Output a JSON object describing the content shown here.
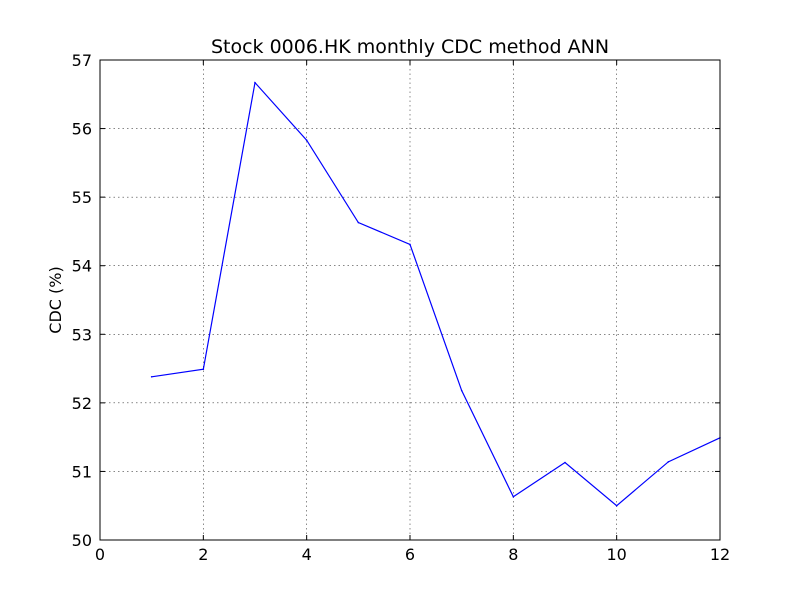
{
  "chart_data": {
    "type": "line",
    "title": "Stock 0006.HK monthly CDC method ANN",
    "xlabel": "",
    "ylabel": "CDC (%)",
    "xlim": [
      0,
      12
    ],
    "ylim": [
      50,
      57
    ],
    "x_ticks": [
      0,
      2,
      4,
      6,
      8,
      10,
      12
    ],
    "y_ticks": [
      50,
      51,
      52,
      53,
      54,
      55,
      56,
      57
    ],
    "grid": true,
    "legend": "none",
    "series": [
      {
        "color": "#0000ff",
        "x": [
          1,
          2,
          3,
          4,
          5,
          6,
          7,
          8,
          9,
          10,
          11,
          12
        ],
        "y": [
          52.38,
          52.49,
          56.67,
          55.83,
          54.63,
          54.31,
          52.18,
          50.63,
          51.13,
          50.5,
          51.14,
          51.49
        ]
      }
    ]
  }
}
